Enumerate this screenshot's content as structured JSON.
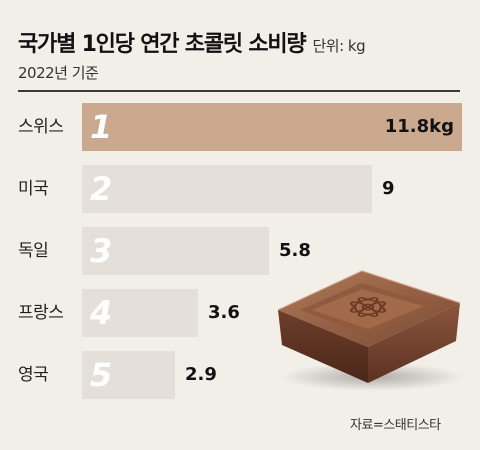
{
  "header": {
    "title": "국가별 1인당 연간 초콜릿 소비량",
    "unit": "단위: kg",
    "subtitle": "2022년 기준"
  },
  "chart_data": {
    "type": "bar",
    "orientation": "horizontal",
    "title": "국가별 1인당 연간 초콜릿 소비량",
    "subtitle": "2022년 기준",
    "unit": "kg",
    "categories": [
      "스위스",
      "미국",
      "독일",
      "프랑스",
      "영국"
    ],
    "ranks": [
      "1",
      "2",
      "3",
      "4",
      "5"
    ],
    "values": [
      11.8,
      9,
      5.8,
      3.6,
      2.9
    ],
    "value_labels": [
      "11.8kg",
      "9",
      "5.8",
      "3.6",
      "2.9"
    ],
    "highlight_color": "#cba98f",
    "bar_color": "#e4e0d9",
    "background_color": "#f2efe9",
    "grid": false,
    "source": "자료=스태티스타"
  },
  "illustration": {
    "icon": "chocolate-piece-icon"
  }
}
